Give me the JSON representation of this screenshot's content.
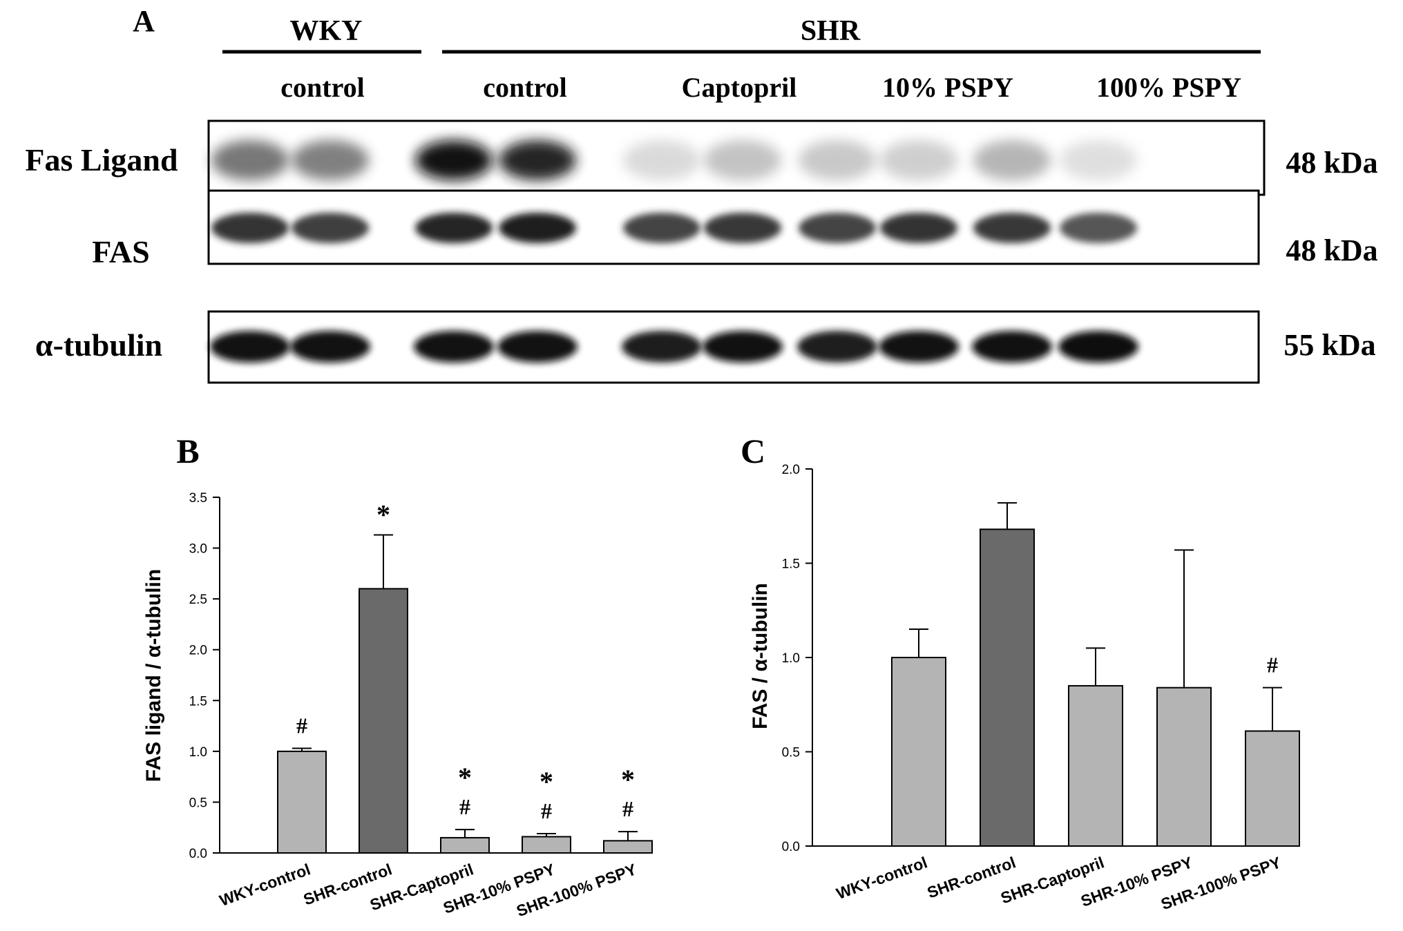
{
  "panel_a": {
    "panel_label": "A",
    "groups": [
      {
        "label": "WKY",
        "sublabels": [
          "control"
        ]
      },
      {
        "label": "SHR",
        "sublabels": [
          "control",
          "Captopril",
          "10% PSPY",
          "100% PSPY"
        ]
      }
    ],
    "rows": [
      {
        "label": "Fas Ligand",
        "size": "48 kDa"
      },
      {
        "label": "FAS",
        "size": "48 kDa"
      },
      {
        "label": "α-tubulin",
        "size": "55 kDa"
      }
    ],
    "band_intensity": [
      [
        0.62,
        0.58,
        0.95,
        0.9,
        0.15,
        0.28,
        0.25,
        0.22,
        0.35,
        0.12
      ],
      [
        0.85,
        0.82,
        0.9,
        0.92,
        0.8,
        0.84,
        0.8,
        0.86,
        0.84,
        0.74
      ],
      [
        0.95,
        0.95,
        0.95,
        0.95,
        0.93,
        0.96,
        0.92,
        0.95,
        0.96,
        0.98
      ]
    ]
  },
  "chart_data": [
    {
      "type": "bar",
      "panel_label": "B",
      "categories": [
        "WKY-control",
        "SHR-control",
        "SHR-Captopril",
        "SHR-10% PSPY",
        "SHR-100% PSPY"
      ],
      "values": [
        1.0,
        2.6,
        0.15,
        0.16,
        0.12
      ],
      "errors": [
        0.03,
        0.53,
        0.08,
        0.03,
        0.09
      ],
      "annotations": [
        [
          "#"
        ],
        [
          "*"
        ],
        [
          "*",
          "#"
        ],
        [
          "*",
          "#"
        ],
        [
          "*",
          "#"
        ]
      ],
      "ylabel": "FAS ligand / α-tubulin",
      "ylim": [
        0,
        3.5
      ],
      "yticks": [
        "0.0",
        "0.5",
        "1.0",
        "1.5",
        "2.0",
        "2.5",
        "3.0",
        "3.5"
      ],
      "bar_colors": [
        "#b4b4b4",
        "#6a6a6a",
        "#b4b4b4",
        "#b4b4b4",
        "#b4b4b4"
      ],
      "grid": false
    },
    {
      "type": "bar",
      "panel_label": "C",
      "categories": [
        "WKY-control",
        "SHR-control",
        "SHR-Captopril",
        "SHR-10% PSPY",
        "SHR-100% PSPY"
      ],
      "values": [
        1.0,
        1.68,
        0.85,
        0.84,
        0.61
      ],
      "errors": [
        0.15,
        0.14,
        0.2,
        0.73,
        0.23
      ],
      "annotations": [
        [],
        [],
        [],
        [],
        [
          "#"
        ]
      ],
      "ylabel": "FAS / α-tubulin",
      "ylim": [
        0,
        2.0
      ],
      "yticks": [
        "0.0",
        "0.5",
        "1.0",
        "1.5",
        "2.0"
      ],
      "bar_colors": [
        "#b4b4b4",
        "#6a6a6a",
        "#b4b4b4",
        "#b4b4b4",
        "#b4b4b4"
      ],
      "grid": false
    }
  ]
}
